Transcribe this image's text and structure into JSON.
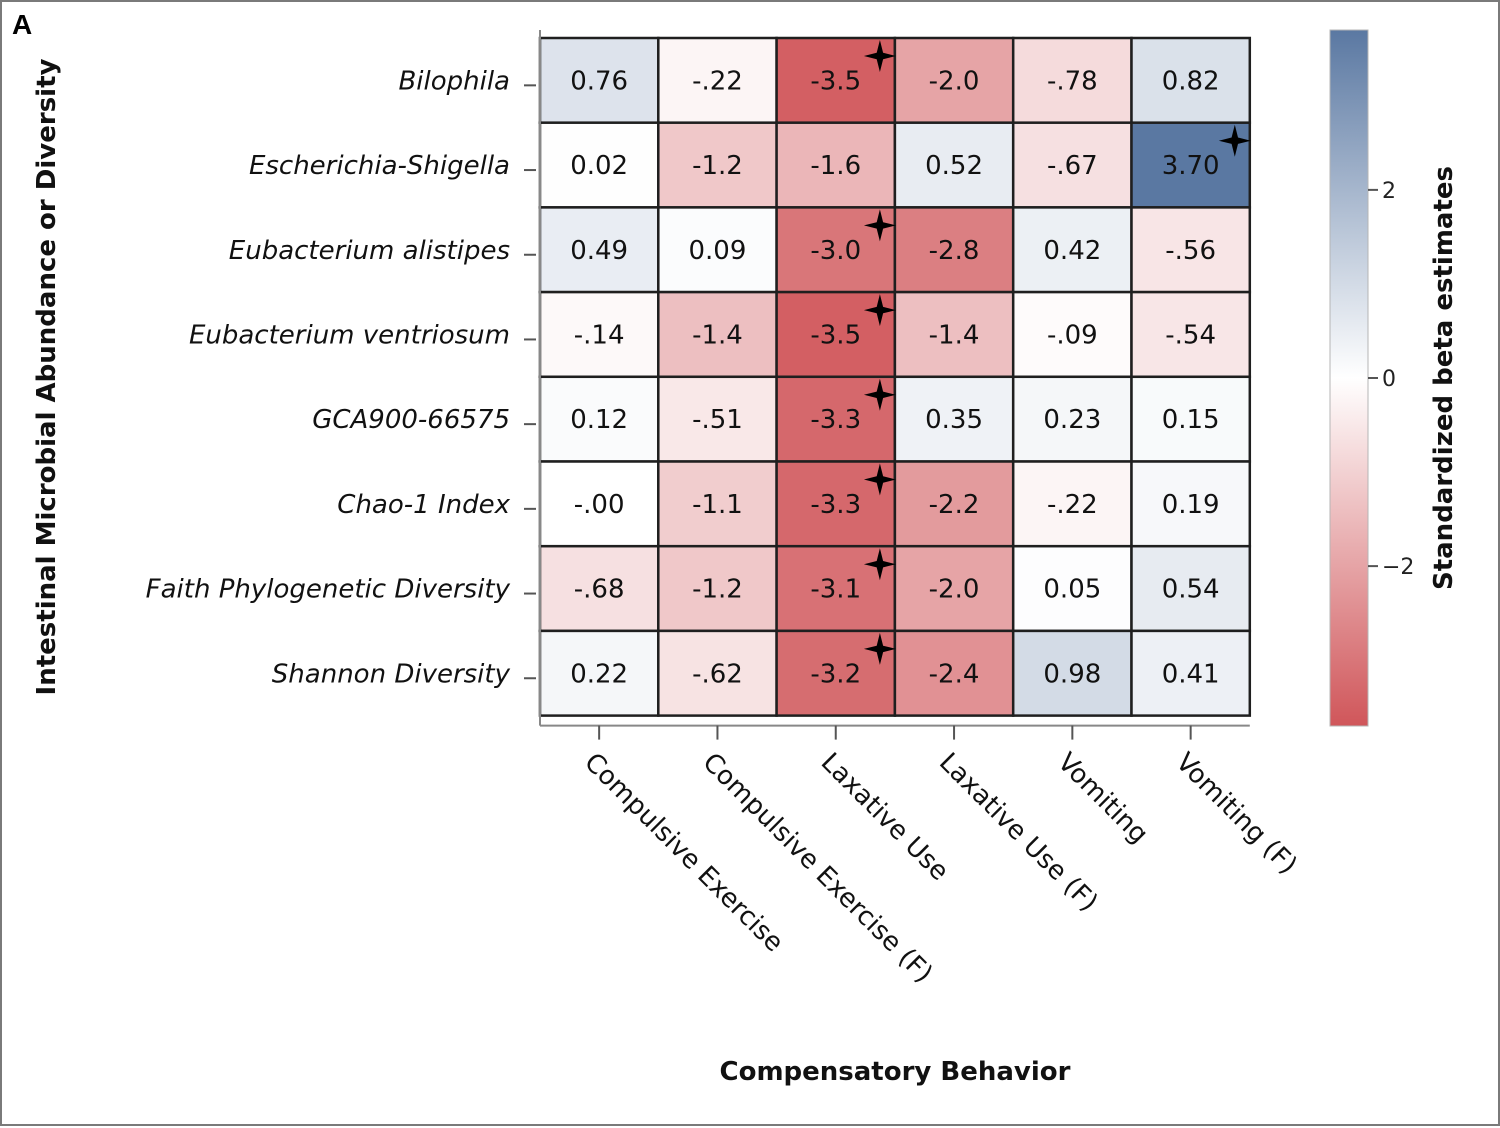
{
  "panel_label": "A",
  "chart_data": {
    "type": "heatmap",
    "title": "",
    "xlabel": "Compensatory Behavior",
    "ylabel": "Intestinal Microbial Abundance or Diversity",
    "colorbar": {
      "label": "Standardized beta estimates",
      "ticks": [
        2,
        0,
        -2
      ],
      "tick_labels": [
        "2",
        "0",
        "−2"
      ],
      "range": [
        -3.7,
        3.7
      ],
      "colors": {
        "negative": "#d0565a",
        "zero": "#ffffff",
        "positive": "#5a78a2"
      }
    },
    "columns": [
      "Compulsive Exercise",
      "Compulsive Exercise (F)",
      "Laxative Use",
      "Laxative Use (F)",
      "Vomiting",
      "Vomiting (F)"
    ],
    "rows": [
      "Bilophila",
      "Escherichia-Shigella",
      "Eubacterium alistipes",
      "Eubacterium ventriosum",
      "GCA900-66575",
      "Chao-1 Index",
      "Faith Phylogenetic Diversity",
      "Shannon Diversity"
    ],
    "values": [
      [
        0.76,
        -0.22,
        -3.5,
        -2.0,
        -0.78,
        0.82
      ],
      [
        0.02,
        -1.2,
        -1.6,
        0.52,
        -0.67,
        3.7
      ],
      [
        0.49,
        0.09,
        -3.0,
        -2.8,
        0.42,
        -0.56
      ],
      [
        -0.14,
        -1.4,
        -3.5,
        -1.4,
        -0.09,
        -0.54
      ],
      [
        0.12,
        -0.51,
        -3.3,
        0.35,
        0.23,
        0.15
      ],
      [
        -0.0,
        -1.1,
        -3.3,
        -2.2,
        -0.22,
        0.19
      ],
      [
        -0.68,
        -1.2,
        -3.1,
        -2.0,
        0.05,
        0.54
      ],
      [
        0.22,
        -0.62,
        -3.2,
        -2.4,
        0.98,
        0.41
      ]
    ],
    "labels": [
      [
        "0.76",
        "-.22",
        "-3.5",
        "-2.0",
        "-.78",
        "0.82"
      ],
      [
        "0.02",
        "-1.2",
        "-1.6",
        "0.52",
        "-.67",
        "3.70"
      ],
      [
        "0.49",
        "0.09",
        "-3.0",
        "-2.8",
        "0.42",
        "-.56"
      ],
      [
        "-.14",
        "-1.4",
        "-3.5",
        "-1.4",
        "-.09",
        "-.54"
      ],
      [
        "0.12",
        "-.51",
        "-3.3",
        "0.35",
        "0.23",
        "0.15"
      ],
      [
        "-.00",
        "-1.1",
        "-3.3",
        "-2.2",
        "-.22",
        "0.19"
      ],
      [
        "-.68",
        "-1.2",
        "-3.1",
        "-2.0",
        "0.05",
        "0.54"
      ],
      [
        "0.22",
        "-.62",
        "-3.2",
        "-2.4",
        "0.98",
        "0.41"
      ]
    ],
    "significant": [
      [
        0,
        2
      ],
      [
        1,
        5
      ],
      [
        2,
        2
      ],
      [
        3,
        2
      ],
      [
        4,
        2
      ],
      [
        5,
        2
      ],
      [
        6,
        2
      ],
      [
        7,
        2
      ]
    ],
    "significance_marker": "four-point-star"
  }
}
